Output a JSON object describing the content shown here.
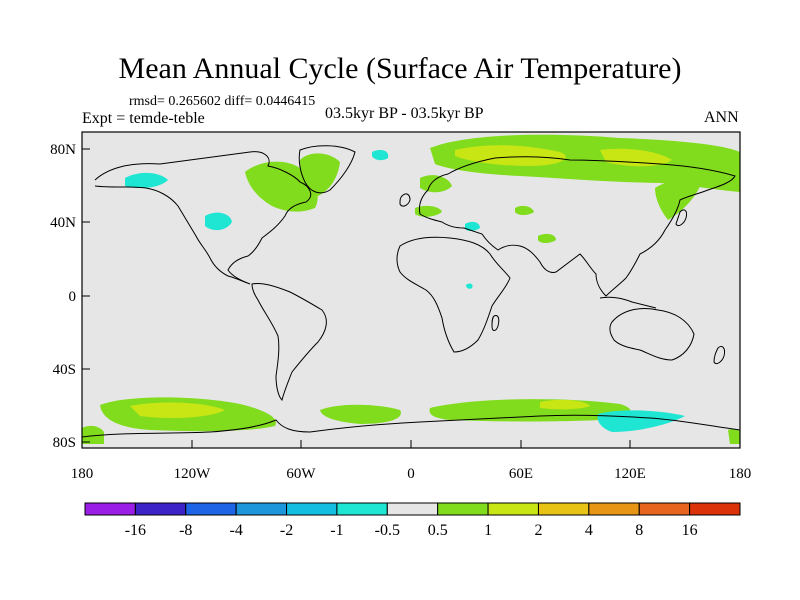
{
  "figure": {
    "title": "Mean Annual Cycle (Surface Air Temperature)",
    "stats": "rmsd= 0.265602 diff= 0.0446415",
    "experiment": "Expt = temde-teble",
    "subtitle": "03.5kyr BP - 03.5kyr BP",
    "season": "ANN"
  },
  "axes": {
    "y_labels": [
      "80N",
      "40N",
      "0",
      "40S",
      "80S"
    ],
    "x_labels": [
      "180",
      "120W",
      "60W",
      "0",
      "60E",
      "120E",
      "180"
    ]
  },
  "colorbar": {
    "labels": [
      "-16",
      "-8",
      "-4",
      "-2",
      "-1",
      "-0.5",
      "0.5",
      "1",
      "2",
      "4",
      "8",
      "16"
    ],
    "colors": [
      "#9a1ee6",
      "#3c23c8",
      "#1e64e6",
      "#1e96dc",
      "#14bee1",
      "#1ee6d2",
      "#e6e6e6",
      "#82dc1e",
      "#c8e614",
      "#e6c314",
      "#e69614",
      "#e6641e",
      "#dc320a"
    ]
  },
  "colors": {
    "neutral": "#e6e6e6",
    "green": "#82dc1e",
    "yellow_green": "#c8e614",
    "cyan": "#1ee6d2"
  }
}
